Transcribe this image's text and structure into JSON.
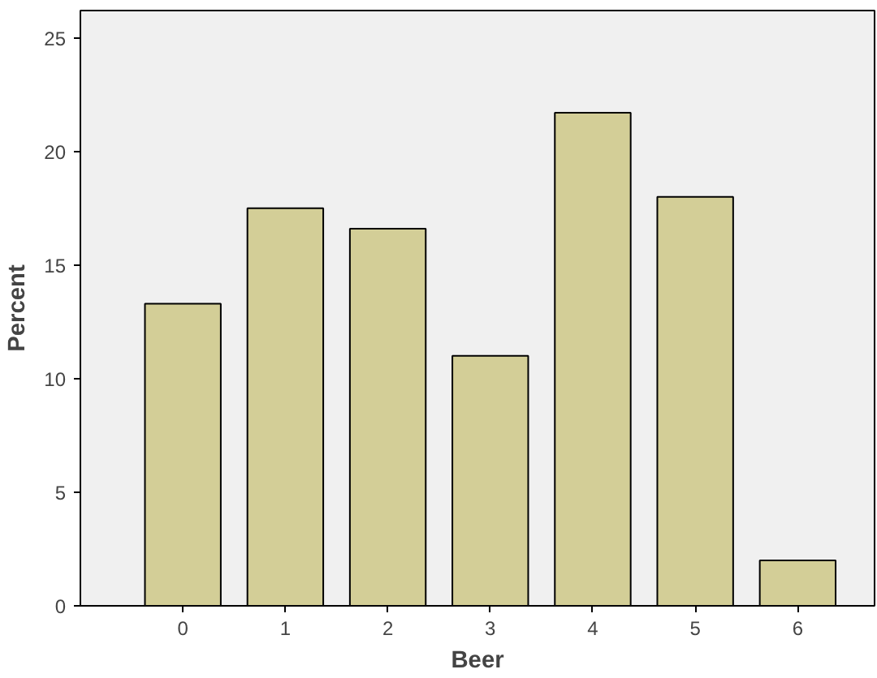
{
  "chart_data": {
    "type": "bar",
    "xlabel": "Beer",
    "ylabel": "Percent",
    "categories": [
      "0",
      "1",
      "2",
      "3",
      "4",
      "5",
      "6"
    ],
    "values": [
      13.3,
      17.5,
      16.6,
      11.0,
      21.7,
      18.0,
      2.0
    ],
    "color": "#d3ce97",
    "ylim": [
      0,
      26.2
    ],
    "yticks": [
      0,
      5,
      10,
      15,
      20,
      25
    ],
    "grid": false
  }
}
